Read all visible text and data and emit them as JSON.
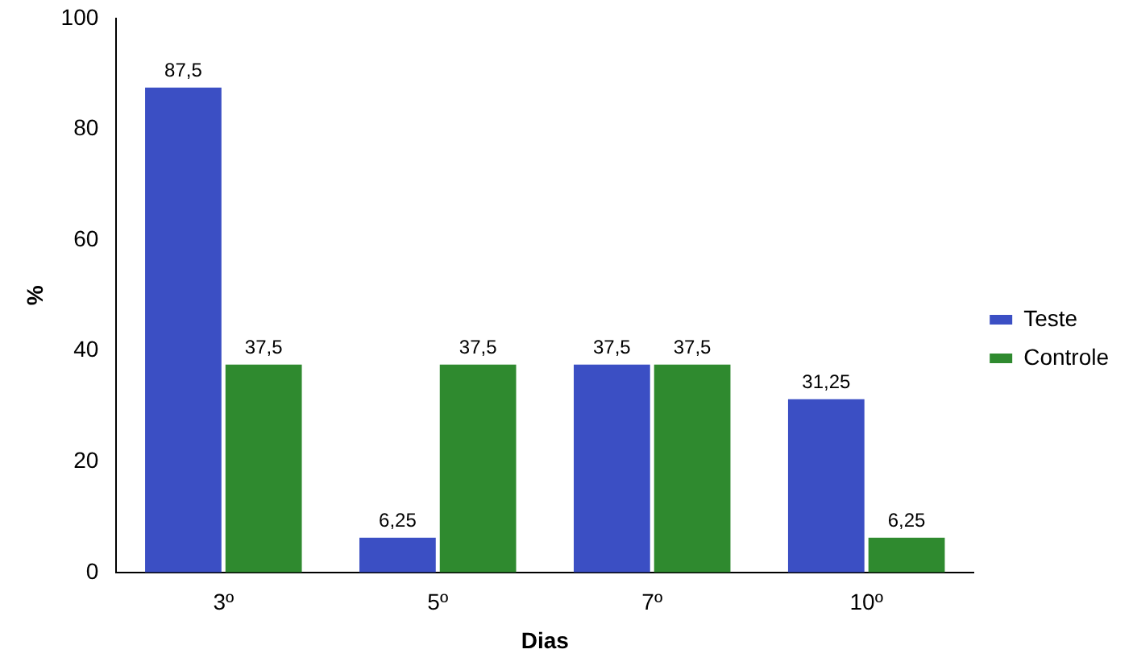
{
  "chart_data": {
    "type": "bar",
    "ylabel": "%",
    "xlabel": "Dias",
    "categories": [
      "3º",
      "5º",
      "7º",
      "10º"
    ],
    "series": [
      {
        "name": "Teste",
        "color": "#3b4fc4",
        "values": [
          87.5,
          6.25,
          37.5,
          31.25
        ],
        "value_labels": [
          "87,5",
          "6,25",
          "37,5",
          "31,25"
        ]
      },
      {
        "name": "Controle",
        "color": "#2f8a2f",
        "values": [
          37.5,
          37.5,
          37.5,
          6.25
        ],
        "value_labels": [
          "37,5",
          "37,5",
          "37,5",
          "6,25"
        ]
      }
    ],
    "ylim": [
      0,
      100
    ],
    "yticks": [
      0,
      20,
      40,
      60,
      80,
      100
    ],
    "grid": false,
    "legend": "right"
  }
}
